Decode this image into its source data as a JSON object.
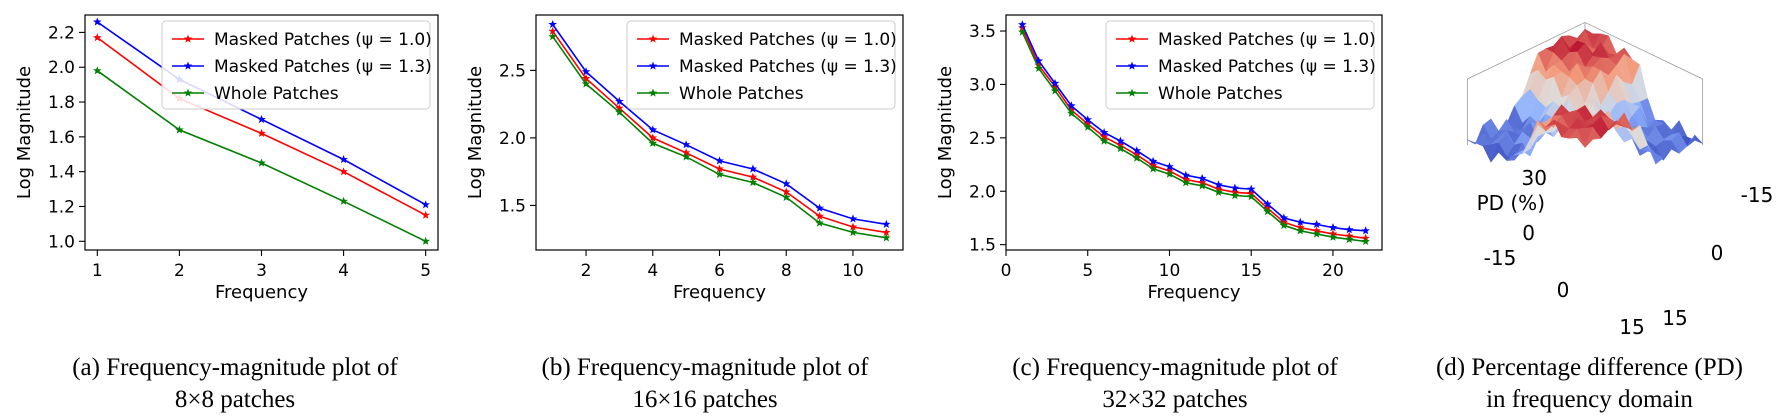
{
  "legend_labels": [
    "Masked Patches (ψ = 1.0)",
    "Masked Patches (ψ = 1.3)",
    "Whole Patches"
  ],
  "chart_data": [
    {
      "type": "line",
      "xlabel": "Frequency",
      "ylabel": "Log Magnitude",
      "xlim": [
        0.85,
        5.15
      ],
      "ylim": [
        0.95,
        2.3
      ],
      "xticks": [
        1,
        2,
        3,
        4,
        5
      ],
      "yticks": [
        1.0,
        1.2,
        1.4,
        1.6,
        1.8,
        2.0,
        2.2
      ],
      "ytick_labels": [
        "1.0",
        "1.2",
        "1.4",
        "1.6",
        "1.8",
        "2.0",
        "2.2"
      ],
      "legend": "upper right",
      "x": [
        1,
        2,
        3,
        4,
        5
      ],
      "series": [
        {
          "name": "Masked Patches (ψ = 1.0)",
          "color": "#ff0000",
          "values": [
            2.17,
            1.82,
            1.62,
            1.4,
            1.15
          ]
        },
        {
          "name": "Masked Patches (ψ = 1.3)",
          "color": "#0000ff",
          "values": [
            2.26,
            1.93,
            1.7,
            1.47,
            1.21
          ]
        },
        {
          "name": "Whole Patches",
          "color": "#008000",
          "values": [
            1.98,
            1.64,
            1.45,
            1.23,
            1.0
          ]
        }
      ],
      "caption": [
        "(a) Frequency-magnitude plot of",
        "8×8 patches"
      ]
    },
    {
      "type": "line",
      "xlabel": "Frequency",
      "ylabel": "Log Magnitude",
      "xlim": [
        0.5,
        11.5
      ],
      "ylim": [
        1.17,
        2.91
      ],
      "xticks": [
        2,
        4,
        6,
        8,
        10
      ],
      "yticks": [
        1.5,
        2.0,
        2.5
      ],
      "ytick_labels": [
        "1.5",
        "2.0",
        "2.5"
      ],
      "legend": "upper right",
      "x": [
        1,
        2,
        3,
        4,
        5,
        6,
        7,
        8,
        9,
        10,
        11
      ],
      "series": [
        {
          "name": "Masked Patches (ψ = 1.0)",
          "color": "#ff0000",
          "values": [
            2.79,
            2.44,
            2.22,
            2.0,
            1.89,
            1.77,
            1.71,
            1.6,
            1.42,
            1.34,
            1.3
          ]
        },
        {
          "name": "Masked Patches (ψ = 1.3)",
          "color": "#0000ff",
          "values": [
            2.84,
            2.49,
            2.27,
            2.06,
            1.95,
            1.83,
            1.77,
            1.66,
            1.48,
            1.4,
            1.36
          ]
        },
        {
          "name": "Whole Patches",
          "color": "#008000",
          "values": [
            2.75,
            2.4,
            2.19,
            1.96,
            1.86,
            1.73,
            1.67,
            1.56,
            1.37,
            1.3,
            1.26
          ]
        }
      ],
      "caption": [
        "(b) Frequency-magnitude plot of",
        "16×16 patches"
      ]
    },
    {
      "type": "line",
      "xlabel": "Frequency",
      "ylabel": "Log Magnitude",
      "xlim": [
        0,
        23
      ],
      "ylim": [
        1.45,
        3.65
      ],
      "xticks": [
        0,
        5,
        10,
        15,
        20
      ],
      "yticks": [
        1.5,
        2.0,
        2.5,
        3.0,
        3.5
      ],
      "ytick_labels": [
        "1.5",
        "2.0",
        "2.5",
        "3.0",
        "3.5"
      ],
      "legend": "upper right",
      "x": [
        1,
        2,
        3,
        4,
        5,
        6,
        7,
        8,
        9,
        10,
        11,
        12,
        13,
        14,
        15,
        16,
        17,
        18,
        19,
        20,
        21,
        22
      ],
      "series": [
        {
          "name": "Masked Patches (ψ = 1.0)",
          "color": "#ff0000",
          "values": [
            3.53,
            3.18,
            2.98,
            2.76,
            2.63,
            2.51,
            2.43,
            2.34,
            2.24,
            2.19,
            2.11,
            2.08,
            2.02,
            1.99,
            1.98,
            1.84,
            1.71,
            1.66,
            1.63,
            1.6,
            1.58,
            1.56
          ]
        },
        {
          "name": "Masked Patches (ψ = 1.3)",
          "color": "#0000ff",
          "values": [
            3.56,
            3.22,
            3.01,
            2.8,
            2.67,
            2.55,
            2.47,
            2.38,
            2.28,
            2.23,
            2.15,
            2.12,
            2.06,
            2.03,
            2.02,
            1.88,
            1.75,
            1.71,
            1.69,
            1.66,
            1.64,
            1.63
          ]
        },
        {
          "name": "Whole Patches",
          "color": "#008000",
          "values": [
            3.49,
            3.15,
            2.94,
            2.73,
            2.6,
            2.47,
            2.4,
            2.31,
            2.21,
            2.16,
            2.08,
            2.05,
            1.99,
            1.96,
            1.95,
            1.81,
            1.68,
            1.63,
            1.6,
            1.57,
            1.55,
            1.53
          ]
        }
      ],
      "caption": [
        "(c) Frequency-magnitude plot of",
        "32×32 patches"
      ]
    },
    {
      "type": "surface",
      "zlabel": "PD (%)",
      "zticks": [
        "30",
        "0"
      ],
      "xticks": [
        "-15",
        "0",
        "15"
      ],
      "yticks": [
        "-15",
        "0",
        "15"
      ],
      "colormap": "coolwarm",
      "caption": [
        "(d) Percentage difference (PD)",
        "in frequency domain"
      ]
    }
  ]
}
